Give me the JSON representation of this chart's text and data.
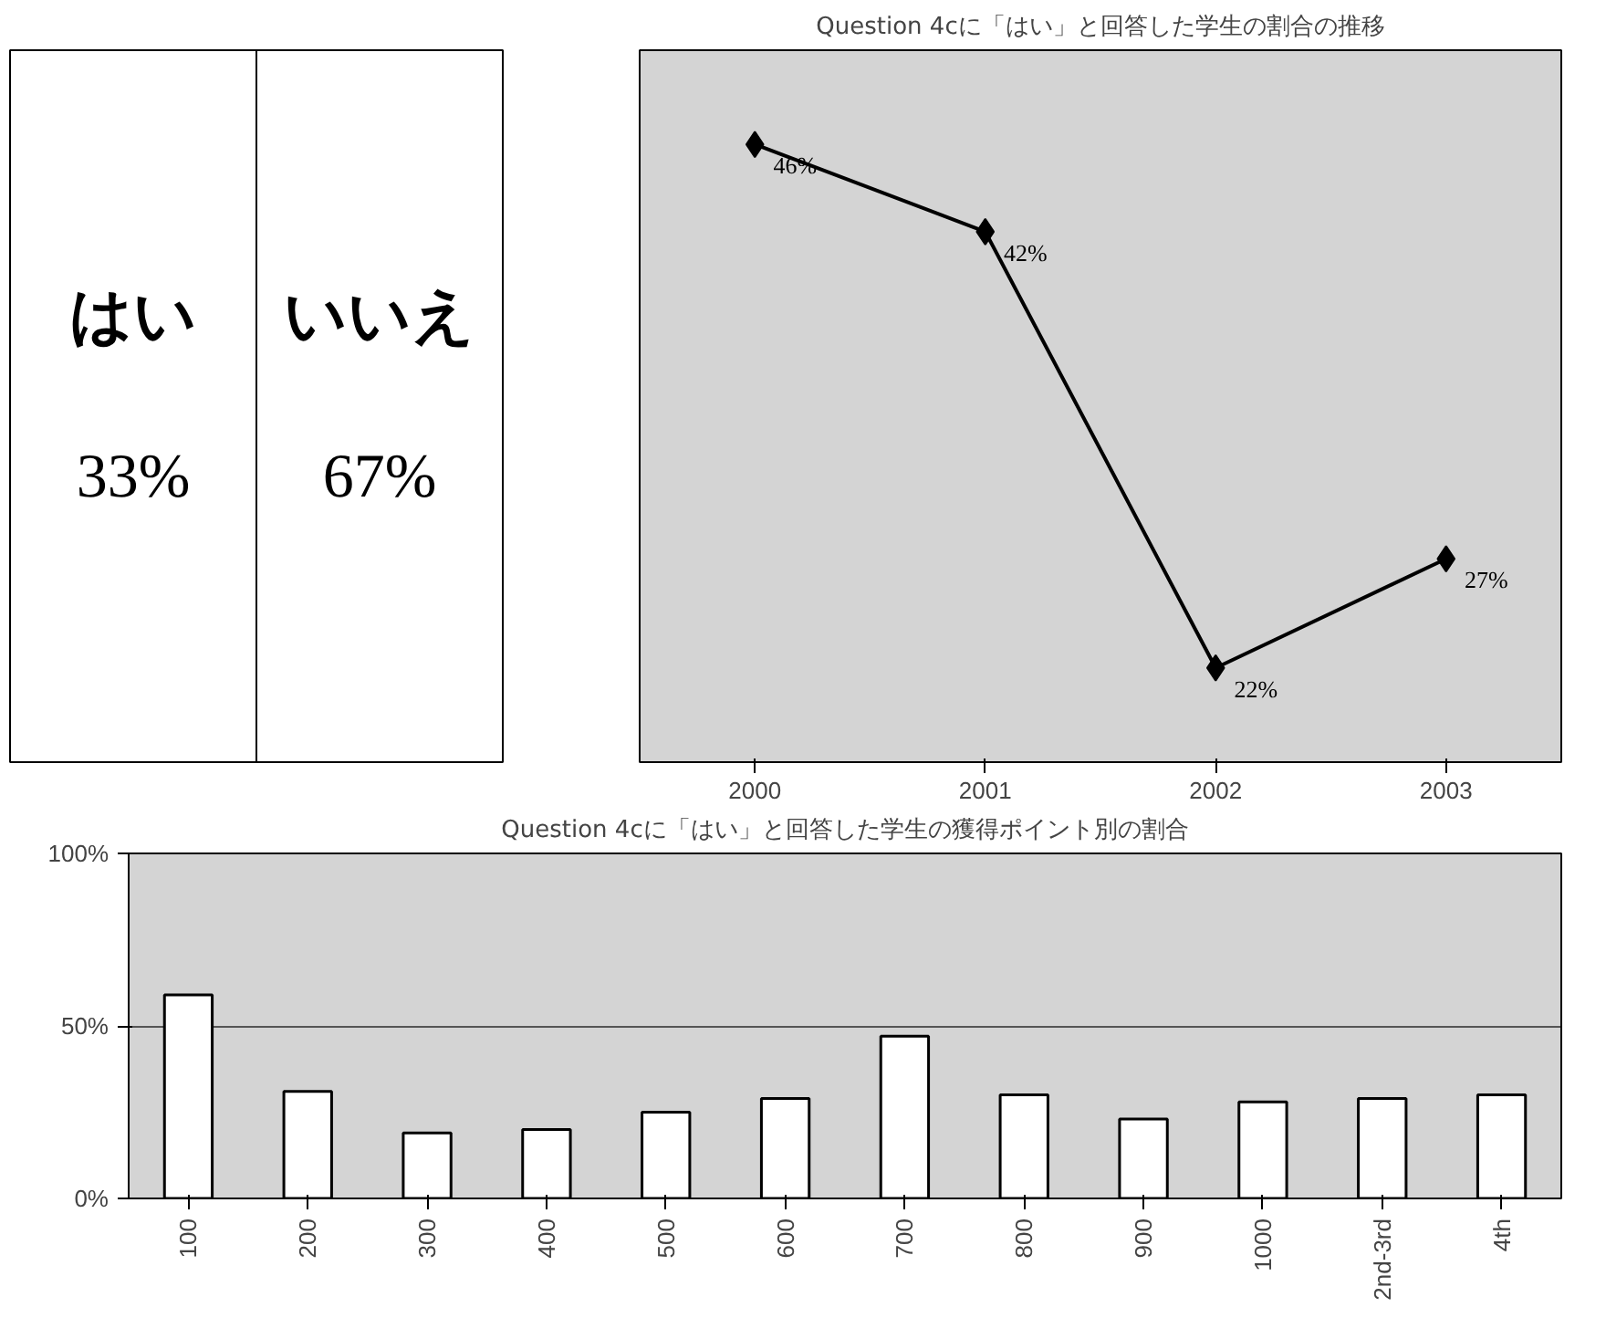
{
  "chart_data": [
    {
      "type": "other",
      "annotations": [
        "はい",
        "いいえ",
        "33%",
        "67%"
      ]
    },
    {
      "type": "line",
      "title": "Question 4cに「はい」と回答した学生の割合の推移",
      "categories": [
        "2000",
        "2001",
        "2002",
        "2003"
      ],
      "series": [
        {
          "color": "#000000",
          "values": [
            46,
            42,
            22,
            27
          ],
          "value_labels": [
            "46%",
            "42%",
            "22%",
            "27%"
          ]
        }
      ],
      "marker": "diamond",
      "tick_labels": "x",
      "grid": false
    },
    {
      "type": "bar",
      "title": "Question 4cに「はい」と回答した学生の獲得ポイント別の割合",
      "categories": [
        "100",
        "200",
        "300",
        "400",
        "500",
        "600",
        "700",
        "800",
        "900",
        "1000",
        "2nd-3rd",
        "4th"
      ],
      "series": [
        {
          "color": "#ffffff",
          "values": [
            59,
            31,
            19,
            20,
            25,
            29,
            47,
            30,
            23,
            28,
            29,
            30
          ]
        }
      ],
      "ylim": [
        0,
        100
      ],
      "yticks": [
        {
          "value": 0,
          "label": "0%"
        },
        {
          "value": 50,
          "label": "50%"
        },
        {
          "value": 100,
          "label": "100%"
        }
      ],
      "grid": "y"
    }
  ]
}
